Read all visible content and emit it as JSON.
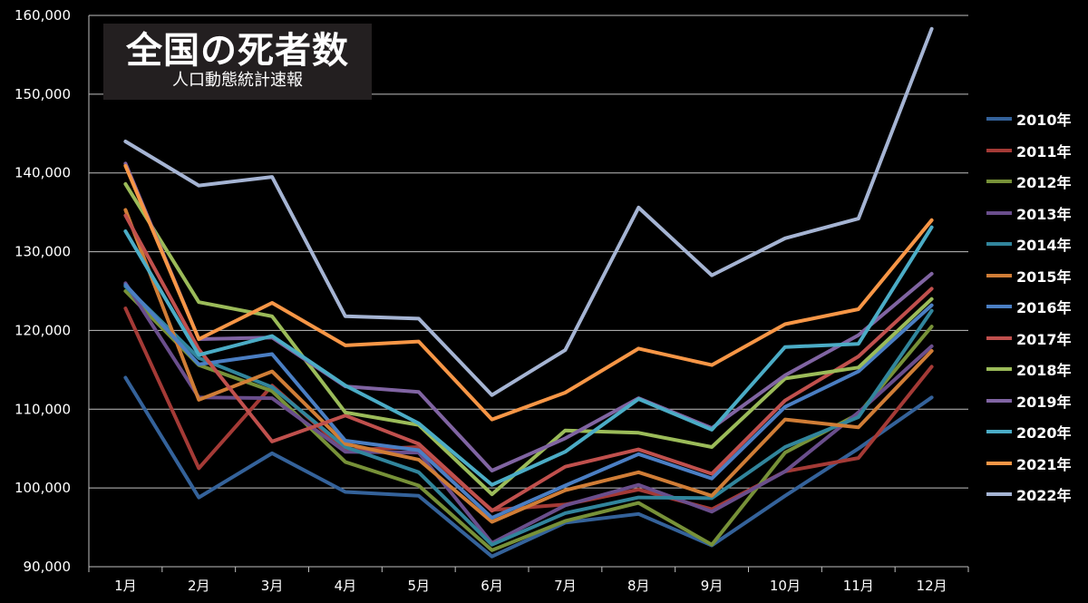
{
  "chart_data": {
    "type": "line",
    "title": "全国の死者数",
    "subtitle": "人口動態統計速報",
    "xlabel": "",
    "ylabel": "",
    "categories": [
      "1月",
      "2月",
      "3月",
      "4月",
      "5月",
      "6月",
      "7月",
      "8月",
      "9月",
      "10月",
      "11月",
      "12月"
    ],
    "ylim": [
      90000,
      160000
    ],
    "yticks": [
      90000,
      100000,
      110000,
      120000,
      130000,
      140000,
      150000,
      160000
    ],
    "ytick_labels": [
      "90,000",
      "100,000",
      "110,000",
      "120,000",
      "130,000",
      "140,000",
      "150,000",
      "160,000"
    ],
    "grid": true,
    "legend_position": "right",
    "series": [
      {
        "name": "2010年",
        "color": "#34629a",
        "values": [
          114000,
          98800,
          104400,
          99500,
          99000,
          91300,
          95600,
          96700,
          92700,
          99000,
          105000,
          111500
        ]
      },
      {
        "name": "2011年",
        "color": "#a43a36",
        "values": [
          122800,
          102500,
          113000,
          104800,
          105200,
          97200,
          97900,
          99800,
          97300,
          102100,
          103800,
          115400
        ]
      },
      {
        "name": "2012年",
        "color": "#779138",
        "values": [
          125000,
          115600,
          112300,
          103300,
          100300,
          92100,
          95800,
          98100,
          92800,
          104500,
          109400,
          120500
        ]
      },
      {
        "name": "2013年",
        "color": "#6a4e8c",
        "values": [
          126000,
          111500,
          111400,
          104600,
          104500,
          93000,
          97800,
          100400,
          97000,
          102100,
          109600,
          118000
        ]
      },
      {
        "name": "2014年",
        "color": "#31859c",
        "values": [
          125600,
          116500,
          112800,
          105200,
          102000,
          92800,
          96800,
          98800,
          98700,
          105200,
          109000,
          122500
        ]
      },
      {
        "name": "2015年",
        "color": "#d07d36",
        "values": [
          135300,
          111200,
          114800,
          105600,
          103600,
          95700,
          99700,
          102000,
          99000,
          108700,
          107700,
          117400
        ]
      },
      {
        "name": "2016年",
        "color": "#4a7ec3",
        "values": [
          125800,
          115700,
          117000,
          106000,
          104800,
          96200,
          100300,
          104300,
          101200,
          110300,
          114800,
          123200
        ]
      },
      {
        "name": "2017年",
        "color": "#c0504d",
        "values": [
          134600,
          117600,
          105900,
          109200,
          105600,
          97100,
          102700,
          104900,
          101800,
          111100,
          116700,
          125300
        ]
      },
      {
        "name": "2018年",
        "color": "#9bbb59",
        "values": [
          138600,
          123600,
          121800,
          109600,
          108000,
          99200,
          107300,
          107000,
          105200,
          113900,
          115300,
          124000
        ]
      },
      {
        "name": "2019年",
        "color": "#8064a2",
        "values": [
          141200,
          118900,
          119100,
          112900,
          112200,
          102200,
          106300,
          111400,
          107600,
          114300,
          119400,
          127200
        ]
      },
      {
        "name": "2020年",
        "color": "#4bacc6",
        "values": [
          132600,
          116900,
          119300,
          113000,
          108200,
          100400,
          104600,
          111300,
          107400,
          117900,
          118300,
          133100
        ]
      },
      {
        "name": "2021年",
        "color": "#f79646",
        "values": [
          140900,
          118900,
          123500,
          118100,
          118600,
          108700,
          112100,
          117700,
          115600,
          120800,
          122700,
          134000
        ]
      },
      {
        "name": "2022年",
        "color": "#a5b4d3",
        "values": [
          144000,
          138400,
          139500,
          121800,
          121500,
          111800,
          117500,
          135600,
          127000,
          131700,
          134200,
          158300
        ]
      }
    ]
  }
}
